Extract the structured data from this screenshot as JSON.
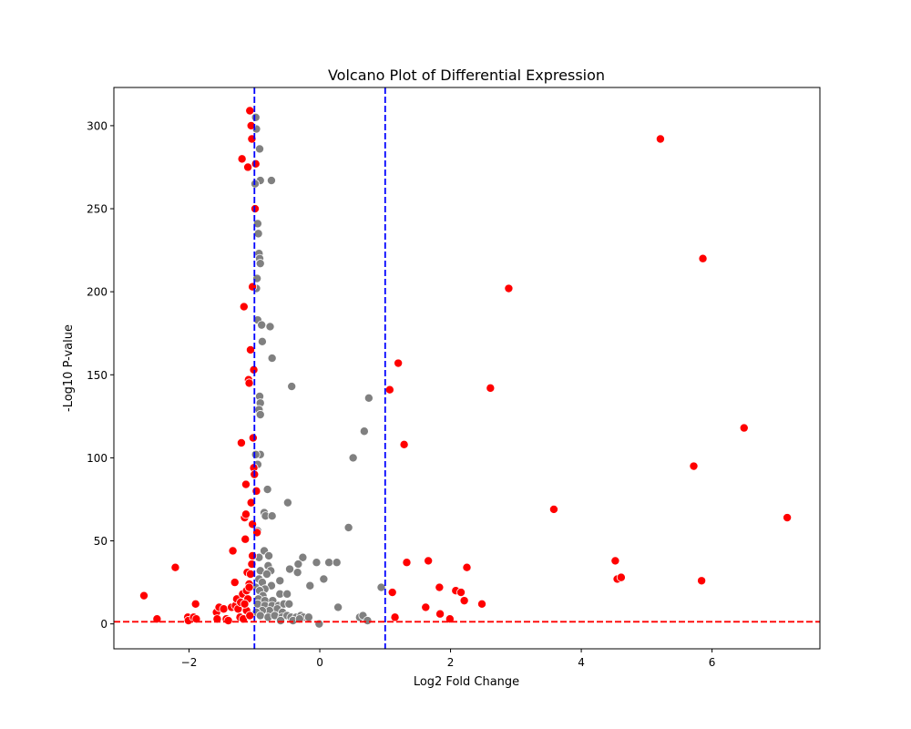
{
  "chart_data": {
    "type": "scatter",
    "title": "Volcano Plot of Differential Expression",
    "xlabel": "Log2 Fold Change",
    "ylabel": "-Log10 P-value",
    "xlim": [
      -3.15,
      7.65
    ],
    "ylim": [
      -15,
      323
    ],
    "xticks": [
      -2,
      0,
      2,
      4,
      6
    ],
    "xtick_labels": [
      "−2",
      "0",
      "2",
      "4",
      "6"
    ],
    "yticks": [
      0,
      50,
      100,
      150,
      200,
      250,
      300
    ],
    "ytick_labels": [
      "0",
      "50",
      "100",
      "150",
      "200",
      "250",
      "300"
    ],
    "grid": false,
    "thresholds": {
      "fold_change_lines": [
        -1,
        1
      ],
      "fold_change_line_color": "#0000ff",
      "pvalue_line": 1.3,
      "pvalue_line_color": "#ff0000"
    },
    "colors": {
      "significant": "#ff0000",
      "not_significant": "#808080"
    },
    "significant_points": [
      [
        -2.69,
        17
      ],
      [
        -2.49,
        3
      ],
      [
        -2.21,
        34
      ],
      [
        -2.02,
        4
      ],
      [
        -2.01,
        2
      ],
      [
        -1.93,
        4
      ],
      [
        -1.9,
        12
      ],
      [
        -1.89,
        3
      ],
      [
        -1.58,
        7
      ],
      [
        -1.57,
        3
      ],
      [
        -1.54,
        10
      ],
      [
        -1.47,
        9
      ],
      [
        -1.43,
        3
      ],
      [
        -1.4,
        2
      ],
      [
        -1.35,
        10
      ],
      [
        -1.33,
        44
      ],
      [
        -1.3,
        25
      ],
      [
        -1.29,
        11
      ],
      [
        -1.27,
        15
      ],
      [
        -1.25,
        9
      ],
      [
        -1.22,
        4
      ],
      [
        -1.21,
        13
      ],
      [
        -1.2,
        109
      ],
      [
        -1.19,
        280
      ],
      [
        -1.18,
        18
      ],
      [
        -1.17,
        3
      ],
      [
        -1.16,
        191
      ],
      [
        -1.15,
        64
      ],
      [
        -1.14,
        51
      ],
      [
        -1.13,
        84
      ],
      [
        -1.12,
        20
      ],
      [
        -1.11,
        31
      ],
      [
        -1.1,
        275
      ],
      [
        -1.09,
        147
      ],
      [
        -1.08,
        145
      ],
      [
        -1.07,
        309
      ],
      [
        -1.06,
        165
      ],
      [
        -1.05,
        300
      ],
      [
        -1.04,
        292
      ],
      [
        -1.03,
        203
      ],
      [
        -1.02,
        112
      ],
      [
        -1.01,
        94
      ],
      [
        -1.0,
        90
      ],
      [
        -0.99,
        250
      ],
      [
        -0.98,
        277
      ],
      [
        -0.97,
        80
      ],
      [
        -0.96,
        55
      ],
      [
        -1.05,
        73
      ],
      [
        -1.03,
        41
      ],
      [
        -1.06,
        30
      ],
      [
        -1.08,
        24
      ],
      [
        -1.1,
        15
      ],
      [
        -1.12,
        8
      ],
      [
        -1.13,
        66
      ],
      [
        -1.01,
        153
      ],
      [
        -1.07,
        5
      ],
      [
        -1.15,
        12
      ],
      [
        -1.03,
        60
      ],
      [
        -1.08,
        22
      ],
      [
        -1.04,
        36
      ],
      [
        1.07,
        141
      ],
      [
        1.11,
        19
      ],
      [
        1.15,
        4
      ],
      [
        1.2,
        157
      ],
      [
        1.29,
        108
      ],
      [
        1.33,
        37
      ],
      [
        1.62,
        10
      ],
      [
        1.66,
        38
      ],
      [
        1.83,
        22
      ],
      [
        1.84,
        6
      ],
      [
        1.99,
        3
      ],
      [
        2.08,
        20
      ],
      [
        2.16,
        19
      ],
      [
        2.21,
        14
      ],
      [
        2.25,
        34
      ],
      [
        2.48,
        12
      ],
      [
        2.61,
        142
      ],
      [
        2.89,
        202
      ],
      [
        3.58,
        69
      ],
      [
        4.52,
        38
      ],
      [
        4.55,
        27
      ],
      [
        4.61,
        28
      ],
      [
        5.21,
        292
      ],
      [
        5.72,
        95
      ],
      [
        5.84,
        26
      ],
      [
        5.86,
        220
      ],
      [
        6.49,
        118
      ],
      [
        7.15,
        64
      ]
    ],
    "non_significant_points": [
      [
        -0.98,
        305
      ],
      [
        -0.92,
        286
      ],
      [
        -0.97,
        298
      ],
      [
        -0.91,
        267
      ],
      [
        -0.74,
        267
      ],
      [
        -0.99,
        265
      ],
      [
        -0.95,
        241
      ],
      [
        -0.94,
        235
      ],
      [
        -0.93,
        223
      ],
      [
        -0.92,
        220
      ],
      [
        -0.91,
        217
      ],
      [
        -0.96,
        208
      ],
      [
        -0.97,
        202
      ],
      [
        -0.95,
        183
      ],
      [
        -0.89,
        180
      ],
      [
        -0.76,
        179
      ],
      [
        -0.88,
        170
      ],
      [
        -0.73,
        160
      ],
      [
        -0.43,
        143
      ],
      [
        -0.92,
        137
      ],
      [
        -0.91,
        133
      ],
      [
        -0.93,
        129
      ],
      [
        -0.91,
        126
      ],
      [
        0.75,
        136
      ],
      [
        0.68,
        116
      ],
      [
        0.51,
        100
      ],
      [
        -0.91,
        102
      ],
      [
        -0.98,
        102
      ],
      [
        -0.95,
        96
      ],
      [
        -0.8,
        81
      ],
      [
        -0.49,
        73
      ],
      [
        -0.85,
        67
      ],
      [
        -0.83,
        65
      ],
      [
        -0.73,
        65
      ],
      [
        0.44,
        58
      ],
      [
        -0.95,
        56
      ],
      [
        -0.85,
        44
      ],
      [
        -0.78,
        41
      ],
      [
        -0.93,
        40
      ],
      [
        -0.26,
        40
      ],
      [
        -0.05,
        37
      ],
      [
        0.14,
        37
      ],
      [
        0.26,
        37
      ],
      [
        -0.33,
        36
      ],
      [
        -0.79,
        35
      ],
      [
        -0.91,
        32
      ],
      [
        -0.46,
        33
      ],
      [
        -0.75,
        32
      ],
      [
        -0.81,
        30
      ],
      [
        -0.34,
        31
      ],
      [
        0.06,
        27
      ],
      [
        -0.61,
        26
      ],
      [
        -0.93,
        27
      ],
      [
        -0.88,
        25
      ],
      [
        -0.15,
        23
      ],
      [
        -0.74,
        23
      ],
      [
        -0.98,
        22
      ],
      [
        -0.84,
        21
      ],
      [
        -0.92,
        20
      ],
      [
        0.94,
        22
      ],
      [
        -0.61,
        18
      ],
      [
        -0.5,
        18
      ],
      [
        -0.87,
        17
      ],
      [
        -0.94,
        15
      ],
      [
        -0.84,
        14
      ],
      [
        -0.72,
        14
      ],
      [
        -0.95,
        12
      ],
      [
        -0.84,
        11
      ],
      [
        -0.73,
        11
      ],
      [
        -0.63,
        11
      ],
      [
        -0.55,
        12
      ],
      [
        -0.47,
        12
      ],
      [
        -0.65,
        9
      ],
      [
        -0.77,
        8
      ],
      [
        -0.88,
        8
      ],
      [
        -0.97,
        7
      ],
      [
        -0.57,
        7
      ],
      [
        0.28,
        10
      ],
      [
        -0.91,
        5
      ],
      [
        -0.79,
        4
      ],
      [
        -0.69,
        5
      ],
      [
        -0.58,
        4
      ],
      [
        -0.5,
        5
      ],
      [
        -0.44,
        4
      ],
      [
        -0.36,
        4
      ],
      [
        -0.29,
        5
      ],
      [
        -0.25,
        4
      ],
      [
        -0.17,
        4
      ],
      [
        -0.6,
        2
      ],
      [
        -0.41,
        2
      ],
      [
        -0.31,
        3
      ],
      [
        0.61,
        4
      ],
      [
        0.66,
        5
      ],
      [
        0.73,
        2
      ],
      [
        -0.01,
        0
      ]
    ]
  }
}
